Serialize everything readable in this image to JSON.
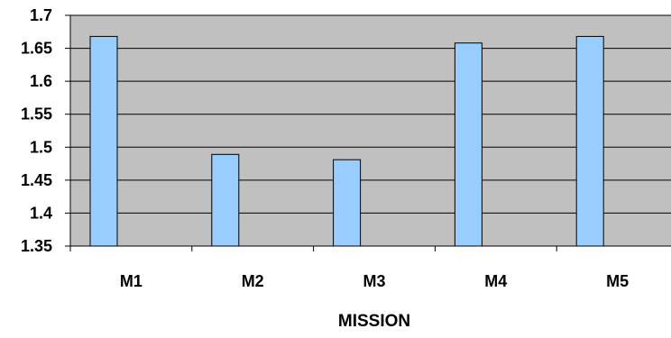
{
  "chart_data": {
    "type": "bar",
    "categories": [
      "M1",
      "M2",
      "M3",
      "M4",
      "M5"
    ],
    "values": [
      1.668,
      1.489,
      1.481,
      1.658,
      1.668
    ],
    "xlabel": "MISSION",
    "ylabel": "",
    "ylim": [
      1.35,
      1.7
    ],
    "yticks": [
      "1.35",
      "1.4",
      "1.45",
      "1.5",
      "1.55",
      "1.6",
      "1.65",
      "1.7"
    ],
    "grid": true,
    "legend": "none",
    "colors": {
      "plot_background": "#c0c0c0",
      "bar_fill": "#99ccff",
      "bar_stroke": "#000000",
      "gridline": "#000000"
    }
  }
}
